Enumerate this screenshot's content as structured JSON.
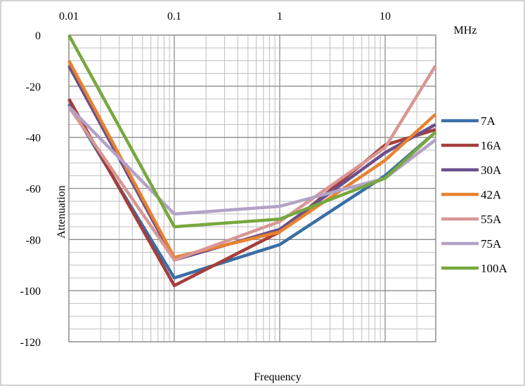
{
  "chart_data": {
    "type": "line",
    "title": "",
    "xlabel": "Frequency",
    "ylabel": "Attenuation",
    "x_unit": "MHz",
    "x_scale": "log",
    "xlim": [
      0.01,
      30
    ],
    "ylim": [
      -120,
      0
    ],
    "x_ticks": [
      0.01,
      0.1,
      1,
      10
    ],
    "x_tick_labels": [
      "0.01",
      "0.1",
      "1",
      "10"
    ],
    "y_ticks": [
      0,
      -20,
      -40,
      -60,
      -80,
      -100,
      -120
    ],
    "y_tick_labels": [
      "0",
      "-20",
      "-40",
      "-60",
      "-80",
      "-100",
      "-120"
    ],
    "grid": true,
    "legend_position": "right",
    "x": [
      0.01,
      0.1,
      1,
      10,
      30
    ],
    "series": [
      {
        "name": "7A",
        "color": "#3a6ea5",
        "values": [
          -27,
          -95,
          -82,
          -55,
          -38
        ]
      },
      {
        "name": "16A",
        "color": "#a63d3a",
        "values": [
          -25,
          -98,
          -77,
          -43,
          -37
        ]
      },
      {
        "name": "30A",
        "color": "#6b4f8c",
        "values": [
          -12,
          -88,
          -76,
          -46,
          -35
        ]
      },
      {
        "name": "42A",
        "color": "#e8822e",
        "values": [
          -10,
          -87,
          -77,
          -49,
          -31
        ]
      },
      {
        "name": "55A",
        "color": "#d99694",
        "values": [
          -28,
          -88,
          -73,
          -44,
          -12
        ]
      },
      {
        "name": "75A",
        "color": "#b3a2c7",
        "values": [
          -28,
          -70,
          -67,
          -56,
          -41
        ]
      },
      {
        "name": "100A",
        "color": "#77a83e",
        "values": [
          0,
          -75,
          -72,
          -56,
          -38
        ]
      }
    ]
  }
}
